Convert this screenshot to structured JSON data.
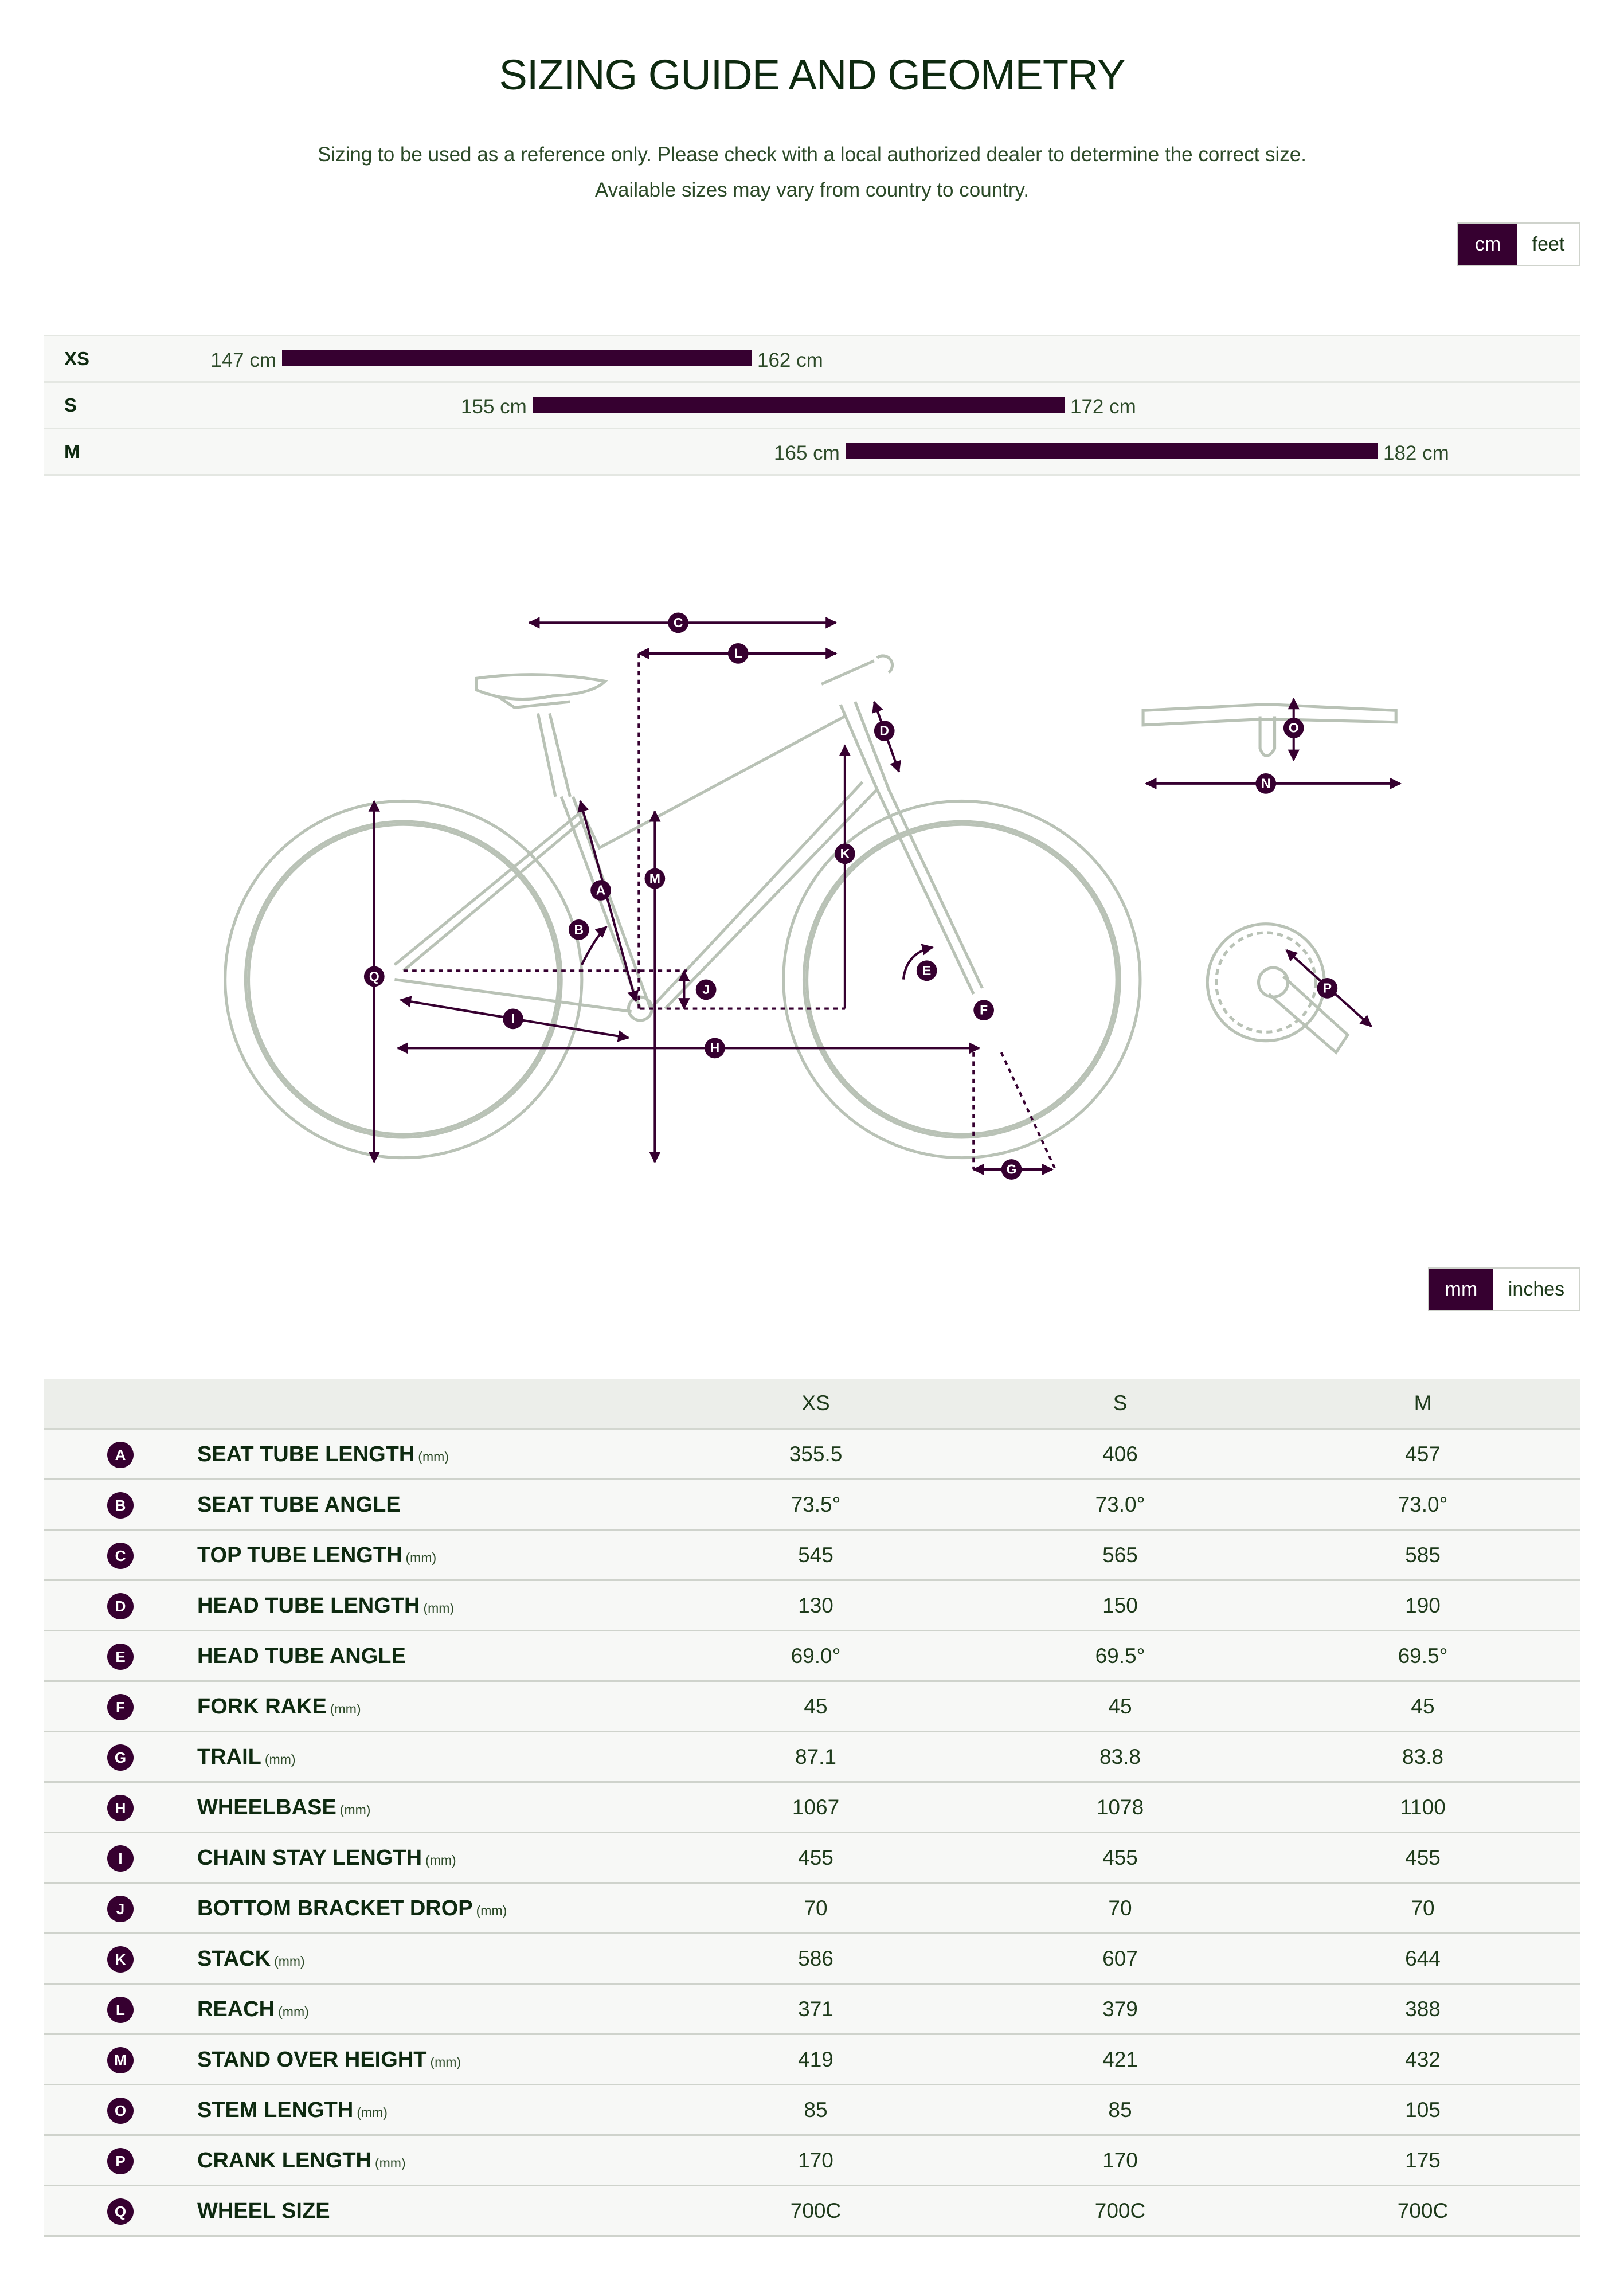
{
  "title": "SIZING GUIDE AND GEOMETRY",
  "subtitle_line1": "Sizing to be used as a reference only. Please check with a local authorized dealer to determine the correct size.",
  "subtitle_line2": "Available sizes may vary from country to country.",
  "height_units": {
    "active": "cm",
    "options": [
      "cm",
      "feet"
    ]
  },
  "size_chart": [
    {
      "size": "XS",
      "min": 147,
      "max": 162,
      "min_label": "147 cm",
      "max_label": "162 cm"
    },
    {
      "size": "S",
      "min": 155,
      "max": 172,
      "min_label": "155 cm",
      "max_label": "172 cm"
    },
    {
      "size": "M",
      "min": 165,
      "max": 182,
      "min_label": "165 cm",
      "max_label": "182 cm"
    }
  ],
  "diagram": {
    "A": "A",
    "B": "B",
    "C": "C",
    "D": "D",
    "E": "E",
    "F": "F",
    "G": "G",
    "H": "H",
    "I": "I",
    "J": "J",
    "K": "K",
    "L": "L",
    "M": "M",
    "N": "N",
    "O": "O",
    "P": "P",
    "Q": "Q"
  },
  "geometry_units": {
    "active": "mm",
    "options": [
      "mm",
      "inches"
    ]
  },
  "geometry": {
    "columns": [
      "XS",
      "S",
      "M"
    ],
    "rows": [
      {
        "letter": "A",
        "name": "SEAT TUBE LENGTH",
        "unit": "(mm)",
        "values": [
          "355.5",
          "406",
          "457"
        ]
      },
      {
        "letter": "B",
        "name": "SEAT TUBE ANGLE",
        "unit": "",
        "values": [
          "73.5°",
          "73.0°",
          "73.0°"
        ]
      },
      {
        "letter": "C",
        "name": "TOP TUBE LENGTH",
        "unit": "(mm)",
        "values": [
          "545",
          "565",
          "585"
        ]
      },
      {
        "letter": "D",
        "name": "HEAD TUBE LENGTH",
        "unit": "(mm)",
        "values": [
          "130",
          "150",
          "190"
        ]
      },
      {
        "letter": "E",
        "name": "HEAD TUBE ANGLE",
        "unit": "",
        "values": [
          "69.0°",
          "69.5°",
          "69.5°"
        ]
      },
      {
        "letter": "F",
        "name": "FORK RAKE",
        "unit": "(mm)",
        "values": [
          "45",
          "45",
          "45"
        ]
      },
      {
        "letter": "G",
        "name": "TRAIL",
        "unit": "(mm)",
        "values": [
          "87.1",
          "83.8",
          "83.8"
        ]
      },
      {
        "letter": "H",
        "name": "WHEELBASE",
        "unit": "(mm)",
        "values": [
          "1067",
          "1078",
          "1100"
        ]
      },
      {
        "letter": "I",
        "name": "CHAIN STAY LENGTH",
        "unit": "(mm)",
        "values": [
          "455",
          "455",
          "455"
        ]
      },
      {
        "letter": "J",
        "name": "BOTTOM BRACKET DROP",
        "unit": "(mm)",
        "values": [
          "70",
          "70",
          "70"
        ]
      },
      {
        "letter": "K",
        "name": "STACK",
        "unit": "(mm)",
        "values": [
          "586",
          "607",
          "644"
        ]
      },
      {
        "letter": "L",
        "name": "REACH",
        "unit": "(mm)",
        "values": [
          "371",
          "379",
          "388"
        ]
      },
      {
        "letter": "M",
        "name": "STAND OVER HEIGHT",
        "unit": "(mm)",
        "values": [
          "419",
          "421",
          "432"
        ]
      },
      {
        "letter": "O",
        "name": "STEM LENGTH",
        "unit": "(mm)",
        "values": [
          "85",
          "85",
          "105"
        ]
      },
      {
        "letter": "P",
        "name": "CRANK LENGTH",
        "unit": "(mm)",
        "values": [
          "170",
          "170",
          "175"
        ]
      },
      {
        "letter": "Q",
        "name": "WHEEL SIZE",
        "unit": "",
        "values": [
          "700C",
          "700C",
          "700C"
        ]
      }
    ]
  },
  "colors": {
    "accent": "#360030",
    "text": "#0e2a10",
    "row_bg": "#f7f8f6"
  }
}
